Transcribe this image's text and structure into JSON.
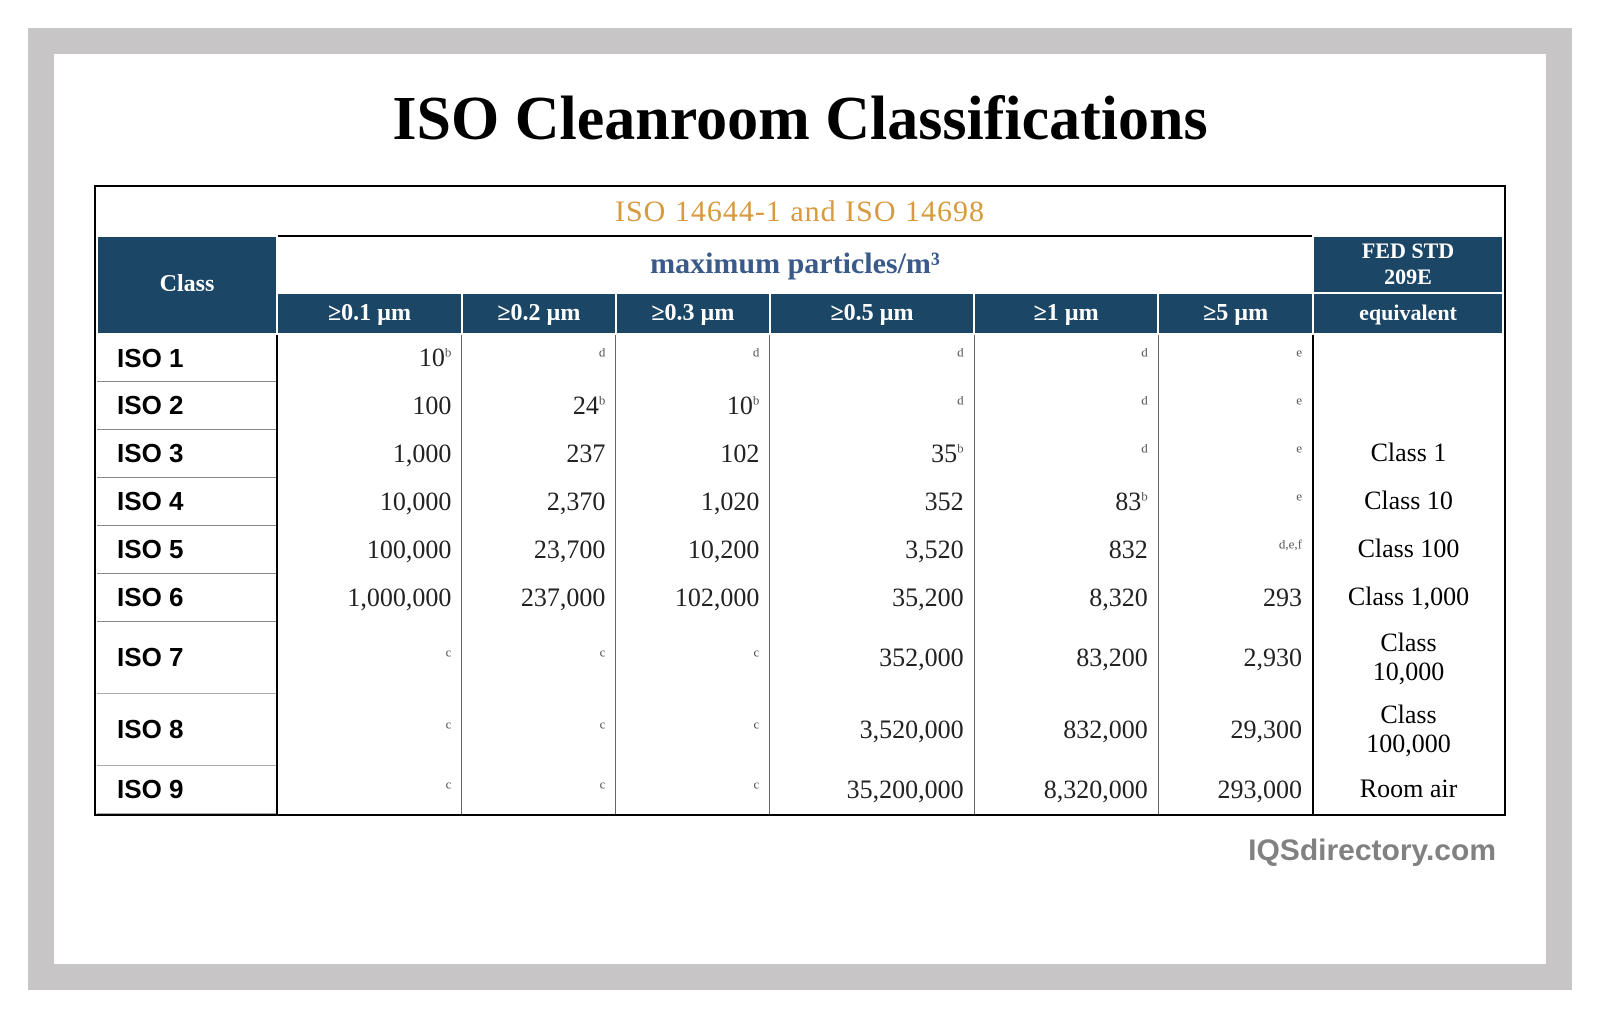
{
  "title": "ISO Cleanroom Classifications",
  "standards_header": "ISO 14644-1 and ISO 14698",
  "max_particles_label": "maximum particles/m³",
  "class_header": "Class",
  "fed_header_line1": "FED STD",
  "fed_header_line2": "209E",
  "equivalent_header": "equivalent",
  "particle_sizes": [
    "≥0.1 µm",
    "≥0.2 µm",
    "≥0.3 µm",
    "≥0.5 µm",
    "≥1 µm",
    "≥5 µm"
  ],
  "colors": {
    "outer_border": "#c7c5c6",
    "header_bg": "#1c4666",
    "header_text": "#ffffff",
    "iso_header_text": "#d89a3f",
    "max_particles_text": "#3a5a8a",
    "footer_text": "#818181",
    "title_text": "#000000"
  },
  "rows": [
    {
      "class": "ISO 1",
      "vals": [
        {
          "v": "10",
          "s": "b"
        },
        {
          "v": "",
          "s": "d"
        },
        {
          "v": "",
          "s": "d"
        },
        {
          "v": "",
          "s": "d"
        },
        {
          "v": "",
          "s": "d"
        },
        {
          "v": "",
          "s": "e"
        }
      ],
      "fed": ""
    },
    {
      "class": "ISO 2",
      "vals": [
        {
          "v": "100",
          "s": ""
        },
        {
          "v": "24",
          "s": "b"
        },
        {
          "v": "10",
          "s": "b"
        },
        {
          "v": "",
          "s": "d"
        },
        {
          "v": "",
          "s": "d"
        },
        {
          "v": "",
          "s": "e"
        }
      ],
      "fed": ""
    },
    {
      "class": "ISO 3",
      "vals": [
        {
          "v": "1,000",
          "s": ""
        },
        {
          "v": "237",
          "s": ""
        },
        {
          "v": "102",
          "s": ""
        },
        {
          "v": "35",
          "s": "b"
        },
        {
          "v": "",
          "s": "d"
        },
        {
          "v": "",
          "s": "e"
        }
      ],
      "fed": "Class 1"
    },
    {
      "class": "ISO 4",
      "vals": [
        {
          "v": "10,000",
          "s": ""
        },
        {
          "v": "2,370",
          "s": ""
        },
        {
          "v": "1,020",
          "s": ""
        },
        {
          "v": "352",
          "s": ""
        },
        {
          "v": "83",
          "s": "b"
        },
        {
          "v": "",
          "s": "e"
        }
      ],
      "fed": "Class 10"
    },
    {
      "class": "ISO 5",
      "vals": [
        {
          "v": "100,000",
          "s": ""
        },
        {
          "v": "23,700",
          "s": ""
        },
        {
          "v": "10,200",
          "s": ""
        },
        {
          "v": "3,520",
          "s": ""
        },
        {
          "v": "832",
          "s": ""
        },
        {
          "v": "",
          "s": "d,e,f"
        }
      ],
      "fed": "Class 100"
    },
    {
      "class": "ISO 6",
      "vals": [
        {
          "v": "1,000,000",
          "s": ""
        },
        {
          "v": "237,000",
          "s": ""
        },
        {
          "v": "102,000",
          "s": ""
        },
        {
          "v": "35,200",
          "s": ""
        },
        {
          "v": "8,320",
          "s": ""
        },
        {
          "v": "293",
          "s": ""
        }
      ],
      "fed": "Class 1,000"
    },
    {
      "class": "ISO 7",
      "vals": [
        {
          "v": "",
          "s": "c"
        },
        {
          "v": "",
          "s": "c"
        },
        {
          "v": "",
          "s": "c"
        },
        {
          "v": "352,000",
          "s": ""
        },
        {
          "v": "83,200",
          "s": ""
        },
        {
          "v": "2,930",
          "s": ""
        }
      ],
      "fed": "Class 10,000"
    },
    {
      "class": "ISO 8",
      "vals": [
        {
          "v": "",
          "s": "c"
        },
        {
          "v": "",
          "s": "c"
        },
        {
          "v": "",
          "s": "c"
        },
        {
          "v": "3,520,000",
          "s": ""
        },
        {
          "v": "832,000",
          "s": ""
        },
        {
          "v": "29,300",
          "s": ""
        }
      ],
      "fed": "Class 100,000"
    },
    {
      "class": "ISO 9",
      "vals": [
        {
          "v": "",
          "s": "c"
        },
        {
          "v": "",
          "s": "c"
        },
        {
          "v": "",
          "s": "c"
        },
        {
          "v": "35,200,000",
          "s": ""
        },
        {
          "v": "8,320,000",
          "s": ""
        },
        {
          "v": "293,000",
          "s": ""
        }
      ],
      "fed": "Room air"
    }
  ],
  "footer": "IQSdirectory.com"
}
